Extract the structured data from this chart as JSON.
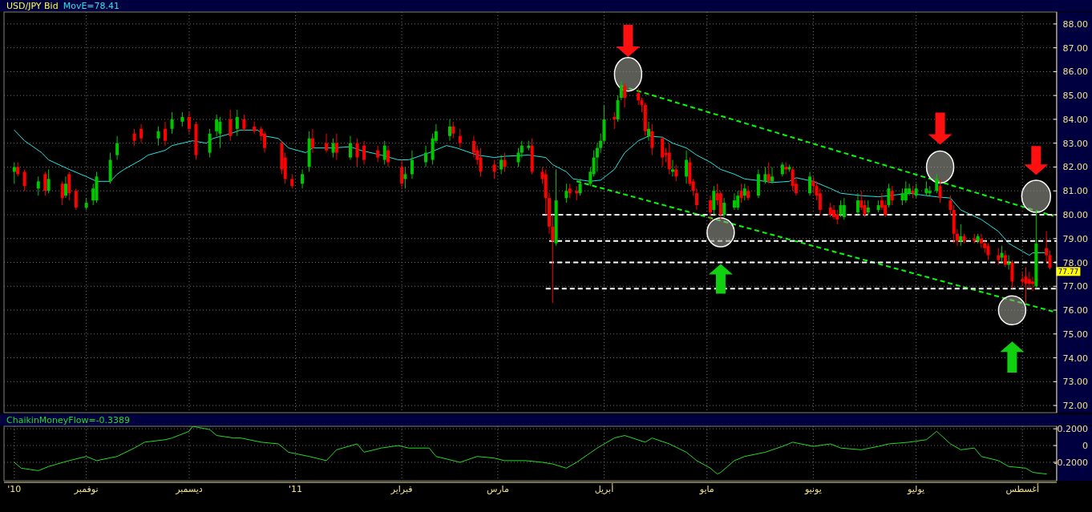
{
  "chart_data": [
    {
      "type": "candlestick",
      "title": "USD/JPY Bid",
      "legend": "top left",
      "grid": true,
      "tick_labels": "y",
      "xlim": [
        "2010-10-08",
        "2011-08-11"
      ],
      "ylim": [
        71.7,
        88.5
      ],
      "xticks": [
        {
          "value": "2010-11-01",
          "label": null
        },
        {
          "value": "2010-12-01",
          "label": null
        },
        {
          "value": "2011-01-01",
          "label": null
        },
        {
          "value": "2011-02-01",
          "label": null
        },
        {
          "value": "2011-03-01",
          "label": null
        },
        {
          "value": "2011-04-01",
          "label": null
        },
        {
          "value": "2011-05-01",
          "label": null
        },
        {
          "value": "2011-06-01",
          "label": null
        },
        {
          "value": "2011-07-01",
          "label": null
        },
        {
          "value": "2011-08-01",
          "label": null
        }
      ],
      "yticks": [
        {
          "value": 72,
          "label": "72.00"
        },
        {
          "value": 73,
          "label": "73.00"
        },
        {
          "value": 74,
          "label": "74.00"
        },
        {
          "value": 75,
          "label": "75.00"
        },
        {
          "value": 76,
          "label": "76.00"
        },
        {
          "value": 77,
          "label": "77.00"
        },
        {
          "value": 78,
          "label": "78.00"
        },
        {
          "value": 79,
          "label": "79.00"
        },
        {
          "value": 80,
          "label": "80.00"
        },
        {
          "value": 81,
          "label": "81.00"
        },
        {
          "value": 82,
          "label": "82.00"
        },
        {
          "value": 83,
          "label": "83.00"
        },
        {
          "value": 84,
          "label": "84.00"
        },
        {
          "value": 85,
          "label": "85.00"
        },
        {
          "value": 86,
          "label": "86.00"
        },
        {
          "value": 87,
          "label": "87.00"
        },
        {
          "value": 88,
          "label": "88.00"
        }
      ],
      "x": [
        "2010-10-11",
        "2010-10-12",
        "2010-10-14",
        "2010-10-18",
        "2010-10-20",
        "2010-10-21",
        "2010-10-25",
        "2010-10-26",
        "2010-10-27",
        "2010-10-29",
        "2010-11-01",
        "2010-11-03",
        "2010-11-04",
        "2010-11-08",
        "2010-11-10",
        "2010-11-15",
        "2010-11-17",
        "2010-11-22",
        "2010-11-24",
        "2010-11-26",
        "2010-11-29",
        "2010-12-01",
        "2010-12-03",
        "2010-12-07",
        "2010-12-09",
        "2010-12-10",
        "2010-12-13",
        "2010-12-15",
        "2010-12-17",
        "2010-12-20",
        "2010-12-22",
        "2010-12-23",
        "2010-12-28",
        "2010-12-29",
        "2010-12-31",
        "2011-01-03",
        "2011-01-05",
        "2011-01-06",
        "2011-01-10",
        "2011-01-12",
        "2011-01-13",
        "2011-01-17",
        "2011-01-19",
        "2011-01-21",
        "2011-01-25",
        "2011-01-27",
        "2011-01-28",
        "2011-02-01",
        "2011-02-02",
        "2011-02-04",
        "2011-02-08",
        "2011-02-10",
        "2011-02-11",
        "2011-02-15",
        "2011-02-16",
        "2011-02-18",
        "2011-02-22",
        "2011-02-23",
        "2011-02-24",
        "2011-02-28",
        "2011-03-02",
        "2011-03-03",
        "2011-03-07",
        "2011-03-08",
        "2011-03-10",
        "2011-03-11",
        "2011-03-14",
        "2011-03-15",
        "2011-03-16",
        "2011-03-17",
        "2011-03-18",
        "2011-03-21",
        "2011-03-22",
        "2011-03-24",
        "2011-03-25",
        "2011-03-28",
        "2011-03-29",
        "2011-03-30",
        "2011-03-31",
        "2011-04-01",
        "2011-04-04",
        "2011-04-05",
        "2011-04-06",
        "2011-04-07",
        "2011-04-11",
        "2011-04-12",
        "2011-04-13",
        "2011-04-14",
        "2011-04-15",
        "2011-04-18",
        "2011-04-19",
        "2011-04-20",
        "2011-04-21",
        "2011-04-22",
        "2011-04-25",
        "2011-04-26",
        "2011-04-27",
        "2011-04-28",
        "2011-05-02",
        "2011-05-03",
        "2011-05-04",
        "2011-05-05",
        "2011-05-06",
        "2011-05-09",
        "2011-05-10",
        "2011-05-11",
        "2011-05-12",
        "2011-05-13",
        "2011-05-16",
        "2011-05-18",
        "2011-05-19",
        "2011-05-20",
        "2011-05-23",
        "2011-05-24",
        "2011-05-25",
        "2011-05-26",
        "2011-05-27",
        "2011-05-31",
        "2011-06-01",
        "2011-06-02",
        "2011-06-03",
        "2011-06-06",
        "2011-06-07",
        "2011-06-08",
        "2011-06-09",
        "2011-06-10",
        "2011-06-14",
        "2011-06-15",
        "2011-06-16",
        "2011-06-17",
        "2011-06-20",
        "2011-06-21",
        "2011-06-22",
        "2011-06-23",
        "2011-06-24",
        "2011-06-27",
        "2011-06-28",
        "2011-06-29",
        "2011-06-30",
        "2011-07-01",
        "2011-07-04",
        "2011-07-05",
        "2011-07-07",
        "2011-07-08",
        "2011-07-11",
        "2011-07-12",
        "2011-07-13",
        "2011-07-14",
        "2011-07-15",
        "2011-07-18",
        "2011-07-19",
        "2011-07-20",
        "2011-07-21",
        "2011-07-22",
        "2011-07-25",
        "2011-07-26",
        "2011-07-27",
        "2011-07-28",
        "2011-07-29",
        "2011-08-01",
        "2011-08-02",
        "2011-08-03",
        "2011-08-04",
        "2011-08-05",
        "2011-08-08",
        "2011-08-09"
      ],
      "ohlc": [
        [
          81.8,
          82.2,
          81.3,
          82.0
        ],
        [
          82.0,
          82.2,
          81.6,
          81.7
        ],
        [
          81.8,
          81.9,
          81.0,
          81.2
        ],
        [
          81.1,
          81.6,
          80.8,
          81.4
        ],
        [
          81.7,
          81.8,
          80.8,
          81.0
        ],
        [
          81.0,
          81.9,
          80.9,
          81.5
        ],
        [
          81.3,
          81.4,
          80.4,
          80.7
        ],
        [
          80.8,
          81.6,
          80.7,
          81.3
        ],
        [
          81.7,
          81.8,
          80.6,
          80.9
        ],
        [
          81.0,
          81.1,
          80.2,
          80.3
        ],
        [
          80.3,
          80.7,
          80.2,
          80.5
        ],
        [
          80.6,
          81.3,
          80.4,
          81.1
        ],
        [
          80.6,
          81.8,
          80.5,
          81.6
        ],
        [
          81.4,
          82.6,
          81.3,
          82.3
        ],
        [
          82.5,
          83.3,
          82.3,
          83.0
        ],
        [
          83.4,
          83.6,
          82.9,
          83.1
        ],
        [
          83.6,
          83.8,
          83.0,
          83.2
        ],
        [
          83.2,
          83.7,
          82.9,
          83.5
        ],
        [
          83.6,
          83.9,
          82.9,
          83.1
        ],
        [
          83.6,
          84.3,
          83.4,
          84.0
        ],
        [
          83.9,
          84.3,
          83.7,
          84.1
        ],
        [
          84.1,
          84.3,
          83.4,
          83.6
        ],
        [
          83.8,
          83.9,
          82.3,
          82.5
        ],
        [
          82.6,
          83.6,
          82.4,
          83.4
        ],
        [
          83.5,
          84.2,
          83.3,
          84.0
        ],
        [
          83.4,
          84.1,
          82.8,
          83.9
        ],
        [
          84.0,
          84.4,
          83.1,
          83.3
        ],
        [
          83.6,
          84.4,
          83.3,
          84.1
        ],
        [
          84.0,
          84.2,
          83.5,
          83.6
        ],
        [
          83.7,
          83.9,
          83.4,
          83.5
        ],
        [
          83.6,
          83.7,
          83.1,
          83.3
        ],
        [
          83.4,
          83.5,
          82.6,
          82.8
        ],
        [
          83.0,
          83.1,
          81.7,
          81.9
        ],
        [
          82.4,
          82.6,
          81.3,
          81.5
        ],
        [
          81.5,
          81.7,
          81.1,
          81.2
        ],
        [
          81.3,
          81.9,
          81.1,
          81.7
        ],
        [
          82.0,
          83.5,
          81.8,
          83.2
        ],
        [
          83.2,
          83.6,
          82.6,
          82.8
        ],
        [
          83.0,
          83.4,
          82.6,
          82.7
        ],
        [
          82.6,
          83.2,
          82.4,
          83.0
        ],
        [
          83.0,
          83.4,
          82.3,
          82.6
        ],
        [
          82.4,
          83.3,
          82.3,
          83.0
        ],
        [
          83.0,
          83.2,
          82.0,
          82.4
        ],
        [
          82.9,
          83.1,
          82.1,
          82.3
        ],
        [
          82.7,
          82.9,
          82.2,
          82.4
        ],
        [
          82.3,
          83.1,
          82.1,
          82.9
        ],
        [
          82.7,
          82.9,
          82.0,
          82.2
        ],
        [
          82.0,
          82.3,
          81.1,
          81.3
        ],
        [
          81.5,
          82.0,
          81.1,
          81.7
        ],
        [
          81.7,
          82.7,
          81.5,
          82.3
        ],
        [
          82.2,
          82.9,
          82.0,
          82.6
        ],
        [
          82.3,
          83.4,
          82.1,
          83.2
        ],
        [
          83.1,
          83.8,
          83.0,
          83.5
        ],
        [
          83.3,
          84.0,
          83.1,
          83.7
        ],
        [
          83.7,
          83.9,
          83.2,
          83.4
        ],
        [
          83.3,
          83.6,
          82.8,
          83.0
        ],
        [
          83.1,
          83.3,
          82.4,
          82.6
        ],
        [
          82.7,
          82.9,
          82.1,
          82.3
        ],
        [
          82.4,
          82.8,
          81.6,
          81.8
        ],
        [
          82.1,
          82.3,
          81.5,
          81.8
        ],
        [
          81.9,
          82.5,
          81.7,
          82.3
        ],
        [
          82.3,
          82.6,
          81.8,
          82.0
        ],
        [
          82.2,
          82.8,
          82.0,
          82.6
        ],
        [
          82.6,
          83.1,
          82.4,
          82.9
        ],
        [
          82.8,
          83.1,
          82.7,
          82.9
        ],
        [
          82.9,
          83.2,
          81.7,
          81.8
        ],
        [
          81.8,
          82.0,
          81.3,
          81.5
        ],
        [
          81.7,
          81.9,
          80.0,
          80.7
        ],
        [
          80.7,
          80.9,
          79.2,
          79.5
        ],
        [
          79.5,
          80.0,
          76.3,
          78.9
        ],
        [
          78.8,
          81.9,
          78.7,
          80.6
        ],
        [
          80.7,
          81.3,
          80.5,
          81.0
        ],
        [
          81.1,
          81.3,
          80.7,
          80.9
        ],
        [
          81.0,
          81.2,
          80.6,
          80.9
        ],
        [
          80.9,
          81.5,
          80.8,
          81.3
        ],
        [
          81.3,
          82.0,
          81.2,
          81.8
        ],
        [
          81.7,
          82.7,
          81.6,
          82.4
        ],
        [
          82.4,
          83.0,
          81.8,
          82.8
        ],
        [
          82.8,
          83.4,
          82.6,
          83.1
        ],
        [
          83.1,
          84.6,
          83.0,
          84.0
        ],
        [
          84.1,
          84.3,
          83.6,
          84.0
        ],
        [
          84.0,
          85.0,
          83.9,
          84.8
        ],
        [
          84.9,
          85.6,
          84.8,
          85.4
        ],
        [
          85.4,
          85.5,
          84.5,
          84.9
        ],
        [
          85.1,
          85.3,
          84.6,
          84.8
        ],
        [
          84.8,
          84.9,
          84.3,
          84.6
        ],
        [
          84.6,
          84.7,
          83.3,
          83.5
        ],
        [
          83.3,
          83.9,
          83.1,
          83.6
        ],
        [
          83.5,
          83.8,
          82.5,
          82.8
        ],
        [
          83.2,
          83.3,
          82.0,
          82.4
        ],
        [
          82.6,
          82.8,
          82.2,
          82.5
        ],
        [
          82.6,
          83.0,
          81.7,
          81.9
        ],
        [
          81.8,
          82.3,
          81.6,
          81.9
        ],
        [
          81.9,
          82.1,
          81.4,
          81.6
        ],
        [
          81.6,
          82.7,
          81.3,
          82.3
        ],
        [
          82.2,
          82.4,
          81.2,
          81.3
        ],
        [
          81.4,
          81.5,
          80.8,
          81.0
        ],
        [
          80.9,
          81.1,
          80.2,
          80.4
        ],
        [
          80.6,
          80.8,
          79.7,
          80.1
        ],
        [
          80.2,
          81.2,
          80.0,
          81.0
        ],
        [
          80.9,
          81.3,
          80.4,
          80.6
        ],
        [
          80.9,
          81.0,
          79.8,
          80.0
        ],
        [
          80.0,
          80.7,
          79.9,
          80.5
        ],
        [
          80.3,
          80.9,
          80.2,
          80.6
        ],
        [
          80.3,
          81.0,
          80.2,
          80.8
        ],
        [
          81.0,
          81.3,
          80.5,
          80.7
        ],
        [
          80.8,
          81.3,
          80.6,
          81.1
        ],
        [
          81.0,
          81.2,
          80.6,
          80.7
        ],
        [
          80.8,
          81.9,
          80.7,
          81.7
        ],
        [
          81.4,
          82.0,
          81.3,
          81.7
        ],
        [
          81.7,
          82.2,
          81.3,
          81.4
        ],
        [
          81.4,
          82.0,
          81.3,
          81.6
        ],
        [
          81.7,
          82.2,
          81.6,
          82.1
        ],
        [
          82.0,
          82.2,
          81.7,
          81.9
        ],
        [
          81.9,
          82.1,
          81.8,
          82.0
        ],
        [
          81.9,
          82.0,
          81.0,
          81.2
        ],
        [
          81.3,
          81.5,
          80.8,
          80.9
        ],
        [
          80.9,
          81.8,
          80.8,
          81.6
        ],
        [
          81.4,
          81.6,
          80.9,
          81.2
        ],
        [
          81.2,
          81.4,
          80.6,
          80.8
        ],
        [
          80.9,
          81.1,
          80.0,
          80.2
        ],
        [
          80.3,
          80.5,
          79.9,
          80.0
        ],
        [
          80.2,
          80.4,
          79.8,
          79.9
        ],
        [
          80.0,
          80.2,
          79.6,
          79.8
        ],
        [
          80.0,
          80.6,
          79.9,
          80.4
        ],
        [
          79.9,
          80.7,
          79.8,
          80.4
        ],
        [
          80.1,
          80.9,
          80.0,
          80.6
        ],
        [
          80.6,
          81.0,
          80.2,
          80.3
        ],
        [
          80.4,
          80.6,
          79.9,
          80.0
        ],
        [
          80.1,
          80.6,
          80.0,
          80.3
        ],
        [
          80.2,
          80.6,
          80.1,
          80.4
        ],
        [
          80.6,
          80.9,
          80.2,
          80.3
        ],
        [
          80.4,
          80.6,
          79.9,
          80.0
        ],
        [
          80.4,
          81.3,
          80.3,
          81.1
        ],
        [
          81.0,
          81.2,
          80.4,
          80.6
        ],
        [
          80.6,
          81.1,
          80.4,
          80.9
        ],
        [
          80.6,
          81.4,
          80.5,
          81.1
        ],
        [
          80.9,
          81.3,
          80.8,
          81.1
        ],
        [
          81.0,
          81.2,
          80.7,
          80.9
        ],
        [
          80.8,
          81.3,
          80.7,
          81.1
        ],
        [
          80.9,
          81.4,
          80.8,
          81.1
        ],
        [
          80.9,
          81.2,
          80.8,
          81.0
        ],
        [
          81.0,
          81.7,
          80.9,
          81.5
        ],
        [
          81.2,
          81.5,
          80.5,
          80.7
        ],
        [
          80.6,
          80.8,
          80.0,
          80.2
        ],
        [
          80.2,
          80.4,
          78.8,
          79.2
        ],
        [
          79.2,
          79.4,
          78.7,
          78.9
        ],
        [
          78.9,
          79.6,
          78.7,
          79.1
        ],
        [
          79.1,
          79.2,
          78.8,
          78.9
        ],
        [
          79.0,
          79.2,
          78.8,
          78.9
        ],
        [
          78.9,
          79.2,
          78.8,
          79.1
        ],
        [
          79.0,
          79.2,
          78.6,
          78.8
        ],
        [
          78.8,
          78.9,
          78.4,
          78.6
        ],
        [
          78.7,
          78.8,
          78.1,
          78.3
        ],
        [
          78.3,
          78.6,
          77.9,
          78.1
        ],
        [
          78.2,
          78.7,
          78.0,
          78.4
        ],
        [
          78.3,
          78.5,
          77.8,
          77.9
        ],
        [
          77.9,
          78.3,
          77.7,
          78.0
        ],
        [
          78.0,
          78.1,
          76.9,
          77.2
        ],
        [
          77.3,
          77.6,
          77.0,
          77.2
        ],
        [
          77.4,
          77.8,
          76.3,
          77.1
        ],
        [
          77.3,
          77.6,
          76.9,
          77.1
        ],
        [
          77.2,
          77.4,
          76.8,
          77.1
        ],
        [
          77.0,
          80.2,
          76.9,
          78.8
        ],
        [
          78.6,
          79.3,
          78.0,
          78.3
        ],
        [
          78.3,
          78.5,
          77.7,
          77.77
        ]
      ],
      "series": [
        {
          "name": "MovE=78.41",
          "type": "line",
          "color": "#1ee6e6",
          "x": [
            "2010-10-11",
            "2010-10-14",
            "2010-10-19",
            "2010-10-21",
            "2010-10-27",
            "2010-11-01",
            "2010-11-04",
            "2010-11-08",
            "2010-11-10",
            "2010-11-12",
            "2010-11-17",
            "2010-11-19",
            "2010-11-24",
            "2010-11-26",
            "2010-12-02",
            "2010-12-06",
            "2010-12-08",
            "2010-12-13",
            "2010-12-16",
            "2010-12-21",
            "2010-12-23",
            "2010-12-27",
            "2010-12-30",
            "2011-01-04",
            "2011-01-06",
            "2011-01-12",
            "2011-01-17",
            "2011-01-20",
            "2011-01-26",
            "2011-01-31",
            "2011-02-03",
            "2011-02-09",
            "2011-02-14",
            "2011-02-17",
            "2011-02-23",
            "2011-02-28",
            "2011-03-03",
            "2011-03-10",
            "2011-03-15",
            "2011-03-17",
            "2011-03-21",
            "2011-03-23",
            "2011-03-28",
            "2011-03-31",
            "2011-04-04",
            "2011-04-07",
            "2011-04-11",
            "2011-04-14",
            "2011-04-18",
            "2011-04-21",
            "2011-04-25",
            "2011-04-28",
            "2011-05-02",
            "2011-05-05",
            "2011-05-09",
            "2011-05-12",
            "2011-05-18",
            "2011-05-20",
            "2011-05-25",
            "2011-05-27",
            "2011-06-01",
            "2011-06-06",
            "2011-06-09",
            "2011-06-15",
            "2011-06-20",
            "2011-06-23",
            "2011-06-29",
            "2011-07-04",
            "2011-07-07",
            "2011-07-11",
            "2011-07-14",
            "2011-07-20",
            "2011-07-25",
            "2011-07-28",
            "2011-08-03",
            "2011-08-04",
            "2011-08-08"
          ],
          "values": [
            83.55,
            83.1,
            82.6,
            82.3,
            81.9,
            81.6,
            81.4,
            81.4,
            81.7,
            81.9,
            82.3,
            82.5,
            82.7,
            82.9,
            83.1,
            83.0,
            83.2,
            83.4,
            83.55,
            83.55,
            83.3,
            83.2,
            82.8,
            82.6,
            82.8,
            82.8,
            82.85,
            82.7,
            82.5,
            82.3,
            82.3,
            82.6,
            82.9,
            82.8,
            82.5,
            82.4,
            82.45,
            82.5,
            82.4,
            82.1,
            81.8,
            81.5,
            81.4,
            81.45,
            81.9,
            82.6,
            83.1,
            83.3,
            83.25,
            83.0,
            82.8,
            82.5,
            82.2,
            81.9,
            81.7,
            81.5,
            81.4,
            81.35,
            81.4,
            81.55,
            81.4,
            81.1,
            80.9,
            80.8,
            80.75,
            80.8,
            80.9,
            80.8,
            80.75,
            80.7,
            80.2,
            79.8,
            79.3,
            78.8,
            78.3,
            78.4,
            78.41
          ]
        },
        {
          "type": "line",
          "color": "#00ff00",
          "line_style": "dashed",
          "x": [
            "2011-04-06",
            "2011-08-10"
          ],
          "values": [
            85.4,
            79.95
          ]
        },
        {
          "type": "line",
          "color": "#00ff00",
          "line_style": "dashed",
          "x": [
            "2011-03-24",
            "2011-08-11"
          ],
          "values": [
            81.4,
            75.9
          ]
        },
        {
          "type": "line",
          "color": "#ffffff",
          "line_style": "dashed",
          "x": [
            "2011-03-14",
            "2011-08-11"
          ],
          "values": [
            80.0,
            80.0
          ]
        },
        {
          "type": "line",
          "color": "#ffffff",
          "line_style": "dashed",
          "x": [
            "2011-03-16",
            "2011-08-11"
          ],
          "values": [
            78.9,
            78.9
          ]
        },
        {
          "type": "line",
          "color": "#ffffff",
          "line_style": "dashed",
          "x": [
            "2011-03-16",
            "2011-08-11"
          ],
          "values": [
            78.0,
            78.0
          ]
        },
        {
          "type": "line",
          "color": "#ffffff",
          "line_style": "dashed",
          "x": [
            "2011-03-15",
            "2011-08-11"
          ],
          "values": [
            76.9,
            76.9
          ]
        }
      ],
      "annotations": [
        {
          "text": "77.77",
          "x": "2011-08-09",
          "y": 77.77
        }
      ]
    },
    {
      "type": "line",
      "legend": "top left",
      "grid": true,
      "xlim": [
        "2010-10-08",
        "2011-08-11"
      ],
      "ylim": [
        -0.42,
        0.23
      ],
      "xticks": [
        {
          "value": "2010-10-11",
          "label": "'10"
        },
        {
          "value": "2010-11-01",
          "label": "نوفمبر"
        },
        {
          "value": "2010-12-01",
          "label": "ديسمبر"
        },
        {
          "value": "2011-01-01",
          "label": "'11"
        },
        {
          "value": "2011-02-01",
          "label": "فبراير"
        },
        {
          "value": "2011-03-01",
          "label": "مارس"
        },
        {
          "value": "2011-04-01",
          "label": "أبريل"
        },
        {
          "value": "2011-05-01",
          "label": "مايو"
        },
        {
          "value": "2011-06-01",
          "label": "يونيو"
        },
        {
          "value": "2011-07-01",
          "label": "يوليو"
        },
        {
          "value": "2011-08-01",
          "label": "أغسطس"
        }
      ],
      "yticks": [
        {
          "value": 0.2,
          "label": "0.2000"
        },
        0,
        {
          "value": -0.2,
          "label": "-0.2000"
        }
      ],
      "series": [
        {
          "name": "ChaikinMoneyFlow=-0.3389",
          "color": "#22dd22",
          "x": [
            "2010-10-11",
            "2010-10-13",
            "2010-10-18",
            "2010-10-21",
            "2010-10-27",
            "2010-11-01",
            "2010-11-04",
            "2010-11-10",
            "2010-11-15",
            "2010-11-18",
            "2010-11-24",
            "2010-11-26",
            "2010-12-01",
            "2010-12-02",
            "2010-12-07",
            "2010-12-09",
            "2010-12-14",
            "2010-12-16",
            "2010-12-22",
            "2010-12-27",
            "2010-12-30",
            "2011-01-05",
            "2011-01-10",
            "2011-01-13",
            "2011-01-19",
            "2011-01-21",
            "2011-01-26",
            "2011-01-31",
            "2011-02-03",
            "2011-02-09",
            "2011-02-11",
            "2011-02-16",
            "2011-02-18",
            "2011-02-23",
            "2011-02-28",
            "2011-03-03",
            "2011-03-09",
            "2011-03-14",
            "2011-03-17",
            "2011-03-21",
            "2011-03-24",
            "2011-03-30",
            "2011-04-04",
            "2011-04-07",
            "2011-04-13",
            "2011-04-15",
            "2011-04-20",
            "2011-04-25",
            "2011-04-28",
            "2011-05-02",
            "2011-05-04",
            "2011-05-05",
            "2011-05-09",
            "2011-05-12",
            "2011-05-18",
            "2011-05-23",
            "2011-05-26",
            "2011-06-01",
            "2011-06-06",
            "2011-06-09",
            "2011-06-15",
            "2011-06-20",
            "2011-06-23",
            "2011-06-29",
            "2011-07-04",
            "2011-07-07",
            "2011-07-11",
            "2011-07-14",
            "2011-07-18",
            "2011-07-20",
            "2011-07-25",
            "2011-07-28",
            "2011-08-02",
            "2011-08-04",
            "2011-08-08"
          ],
          "values": [
            -0.2,
            -0.27,
            -0.3,
            -0.25,
            -0.18,
            -0.13,
            -0.18,
            -0.13,
            -0.03,
            0.04,
            0.07,
            0.09,
            0.17,
            0.23,
            0.19,
            0.12,
            0.09,
            0.09,
            0.04,
            0.02,
            -0.08,
            -0.13,
            -0.18,
            -0.05,
            0.02,
            -0.08,
            -0.03,
            0,
            -0.03,
            -0.03,
            -0.13,
            -0.18,
            -0.2,
            -0.13,
            -0.15,
            -0.18,
            -0.18,
            -0.2,
            -0.22,
            -0.27,
            -0.2,
            -0.03,
            0.09,
            0.12,
            0.04,
            0.09,
            0.02,
            -0.08,
            -0.18,
            -0.27,
            -0.34,
            -0.32,
            -0.18,
            -0.13,
            -0.08,
            -0.01,
            0.04,
            -0.01,
            0.02,
            -0.03,
            -0.05,
            -0.01,
            0.02,
            0.04,
            0.07,
            0.17,
            0.02,
            -0.05,
            -0.03,
            -0.13,
            -0.18,
            -0.25,
            -0.27,
            -0.32,
            -0.34
          ]
        }
      ]
    }
  ]
}
